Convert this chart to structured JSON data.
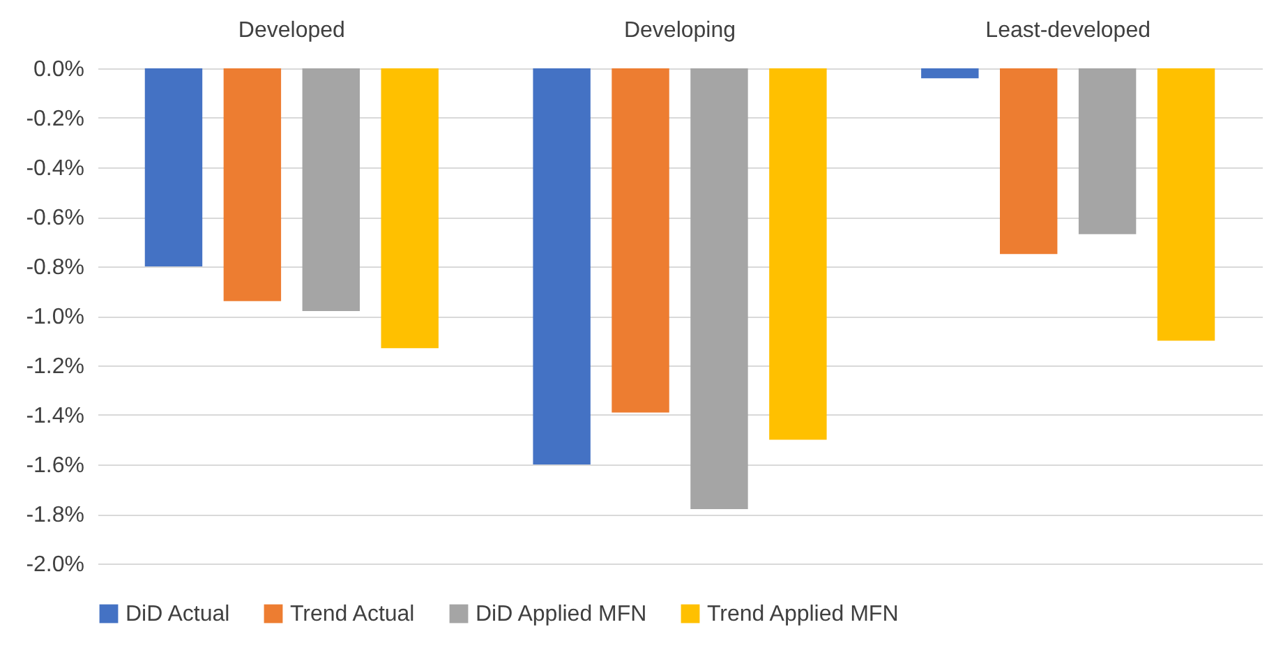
{
  "chart_data": {
    "type": "bar",
    "categories": [
      "Developed",
      "Developing",
      "Least-developed"
    ],
    "series": [
      {
        "name": "DiD Actual",
        "color": "#4472c4",
        "values": [
          -0.8,
          -1.6,
          -0.04
        ]
      },
      {
        "name": "Trend Actual",
        "color": "#ed7d31",
        "values": [
          -0.94,
          -1.39,
          -0.75
        ]
      },
      {
        "name": "DiD Applied MFN",
        "color": "#a5a5a5",
        "values": [
          -0.98,
          -1.78,
          -0.67
        ]
      },
      {
        "name": "Trend Applied MFN",
        "color": "#ffc000",
        "values": [
          -1.13,
          -1.5,
          -1.1
        ]
      }
    ],
    "ylim": [
      -2.0,
      0.0
    ],
    "yticks": [
      {
        "value": 0,
        "label": "0.0%"
      },
      {
        "value": -0.2,
        "label": "-0.2%"
      },
      {
        "value": -0.4,
        "label": "-0.4%"
      },
      {
        "value": -0.6,
        "label": "-0.6%"
      },
      {
        "value": -0.8,
        "label": "-0.8%"
      },
      {
        "value": -1.0,
        "label": "-1.0%"
      },
      {
        "value": -1.2,
        "label": "-1.2%"
      },
      {
        "value": -1.4,
        "label": "-1.4%"
      },
      {
        "value": -1.6,
        "label": "-1.6%"
      },
      {
        "value": -1.8,
        "label": "-1.8%"
      },
      {
        "value": -2.0,
        "label": "-2.0%"
      }
    ],
    "grid": true,
    "legend": "bottom"
  }
}
